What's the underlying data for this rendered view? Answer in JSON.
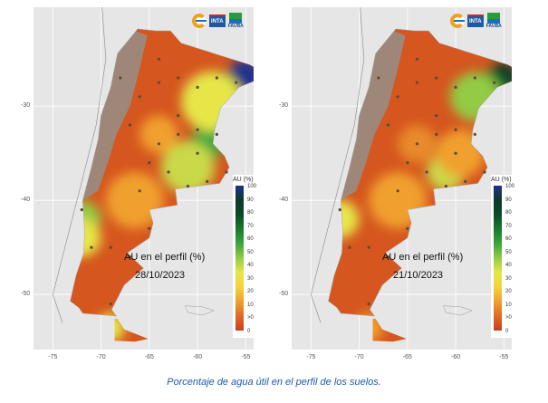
{
  "maps": [
    {
      "label": "AU en el perfil (%)",
      "date": "28/10/2023"
    },
    {
      "label": "AU en el perfil (%)",
      "date": "21/10/2023"
    }
  ],
  "legend": {
    "title": "AU (%)",
    "ticks": [
      "100",
      "90",
      "80",
      "70",
      "60",
      "50",
      "40",
      "30",
      "20",
      "10",
      ">0",
      "0"
    ]
  },
  "y_ticks": [
    "-30",
    "-40",
    "-50"
  ],
  "x_ticks": [
    "-75",
    "-70",
    "-65",
    "-60",
    "-55"
  ],
  "logos": [
    "INTA",
    "FAUBA"
  ],
  "caption": "Porcentaje de agua útil en el perfil de los suelos.",
  "colors": {
    "caption": "#1f5aa8",
    "dry": "#d5561e",
    "wet": "#0c3a2a",
    "saturated": "#23308e",
    "andes": "#9b8a7e",
    "background": "#e6e6e6"
  }
}
